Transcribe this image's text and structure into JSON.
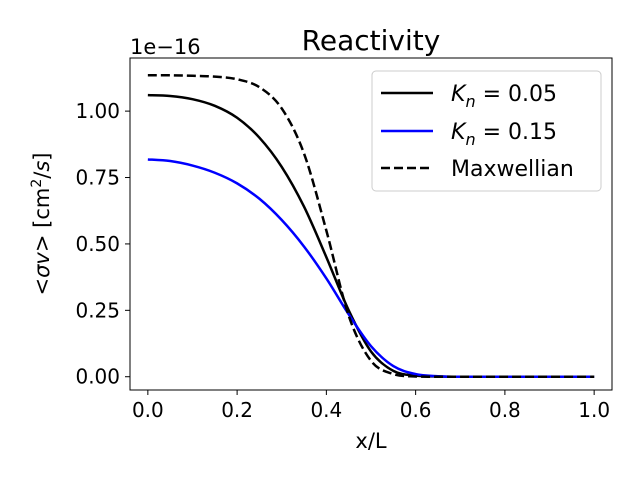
{
  "chart_data": {
    "type": "line",
    "title": "Reactivity",
    "xlabel": "x/L",
    "ylabel": "<σv> [cm²/s]",
    "ylabel_parts": {
      "pre": "<",
      "sym1": "σ",
      "sym2": "v",
      "mid": "> [cm",
      "sup": "2",
      "slash": "/",
      "s": "s",
      "post": "]"
    },
    "offset_text": "1e−16",
    "xlim": [
      -0.04,
      1.04
    ],
    "ylim": [
      -0.05,
      1.2
    ],
    "xticks": [
      0.0,
      0.2,
      0.4,
      0.6,
      0.8,
      1.0
    ],
    "xtick_labels": [
      "0.0",
      "0.2",
      "0.4",
      "0.6",
      "0.8",
      "1.0"
    ],
    "yticks": [
      0.0,
      0.25,
      0.5,
      0.75,
      1.0
    ],
    "ytick_labels": [
      "0.00",
      "0.25",
      "0.50",
      "0.75",
      "1.00"
    ],
    "legend_position": "upper right",
    "series": [
      {
        "name": "K_n = 0.05",
        "legend": {
          "sym": "K",
          "sub": "n",
          "eq": " = 0.05"
        },
        "color": "#000000",
        "style": "solid",
        "x": [
          0.0,
          0.05,
          0.1,
          0.15,
          0.2,
          0.25,
          0.3,
          0.35,
          0.4,
          0.45,
          0.5,
          0.55,
          0.6,
          0.65,
          0.7,
          0.8,
          0.9,
          1.0
        ],
        "y": [
          1.06,
          1.057,
          1.045,
          1.02,
          0.975,
          0.9,
          0.79,
          0.64,
          0.45,
          0.25,
          0.095,
          0.022,
          0.004,
          0.001,
          0.0,
          0.0,
          0.0,
          0.0
        ]
      },
      {
        "name": "K_n = 0.15",
        "legend": {
          "sym": "K",
          "sub": "n",
          "eq": " = 0.15"
        },
        "color": "#0000ff",
        "style": "solid",
        "x": [
          0.0,
          0.05,
          0.1,
          0.15,
          0.2,
          0.25,
          0.3,
          0.35,
          0.4,
          0.45,
          0.5,
          0.55,
          0.6,
          0.65,
          0.7,
          0.8,
          0.9,
          1.0
        ],
        "y": [
          0.818,
          0.812,
          0.795,
          0.768,
          0.728,
          0.67,
          0.59,
          0.49,
          0.37,
          0.235,
          0.115,
          0.04,
          0.01,
          0.002,
          0.0,
          0.0,
          0.0,
          0.0
        ]
      },
      {
        "name": "Maxwellian",
        "legend": {
          "sym": "",
          "sub": "",
          "eq": "Maxwellian"
        },
        "color": "#000000",
        "style": "dashed",
        "x": [
          0.0,
          0.05,
          0.1,
          0.15,
          0.2,
          0.25,
          0.3,
          0.35,
          0.4,
          0.45,
          0.5,
          0.55,
          0.6,
          0.65,
          0.7,
          0.8,
          0.9,
          1.0
        ],
        "y": [
          1.135,
          1.135,
          1.133,
          1.13,
          1.12,
          1.09,
          1.01,
          0.84,
          0.55,
          0.23,
          0.06,
          0.01,
          0.001,
          0.0,
          0.0,
          0.0,
          0.0,
          0.0
        ]
      }
    ]
  }
}
